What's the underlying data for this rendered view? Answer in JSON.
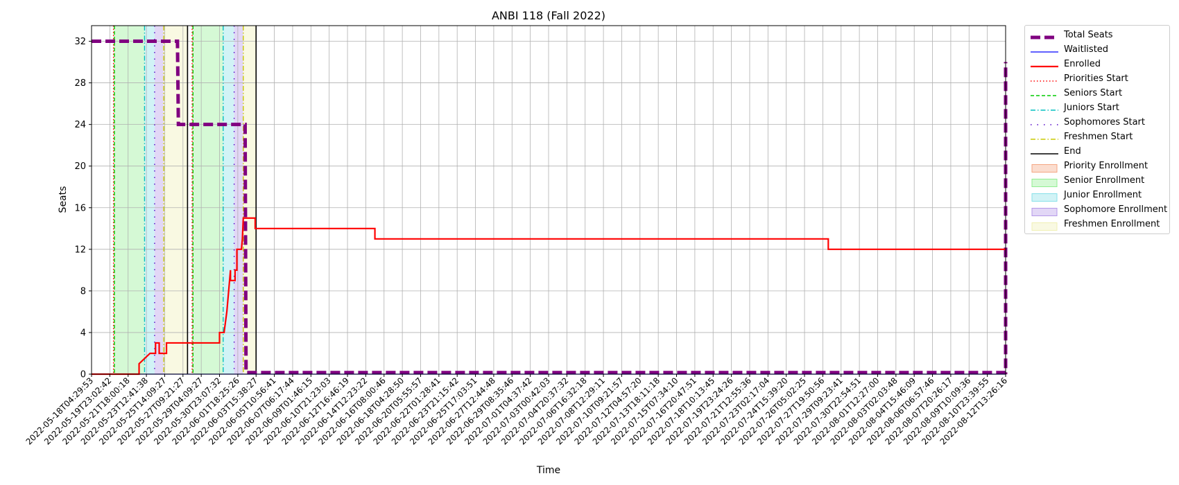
{
  "chart_data": {
    "type": "line",
    "title": "ANBI 118 (Fall 2022)",
    "xlabel": "Time",
    "ylabel": "Seats",
    "ylim": [
      0,
      33.5
    ],
    "yticks": [
      0,
      4,
      8,
      12,
      16,
      20,
      24,
      28,
      32
    ],
    "grid": true,
    "legend_position": "outside-right",
    "xticks": [
      "2022-05-18T04:29:53",
      "2022-05-19T23:02:42",
      "2022-05-21T18:00:18",
      "2022-05-23T12:41:38",
      "2022-05-25T14:09:27",
      "2022-05-27T09:21:27",
      "2022-05-29T04:09:27",
      "2022-05-30T23:07:32",
      "2022-06-01T18:25:26",
      "2022-06-03T15:38:27",
      "2022-06-05T10:56:41",
      "2022-06-07T06:17:44",
      "2022-06-09T01:46:15",
      "2022-06-10T21:23:03",
      "2022-06-12T16:46:19",
      "2022-06-14T12:23:22",
      "2022-06-16T08:00:46",
      "2022-06-18T04:28:50",
      "2022-06-20T05:55:57",
      "2022-06-22T01:28:41",
      "2022-06-23T21:15:42",
      "2022-06-25T17:03:51",
      "2022-06-27T12:44:48",
      "2022-06-29T08:35:46",
      "2022-07-01T04:37:42",
      "2022-07-03T00:42:03",
      "2022-07-04T20:37:32",
      "2022-07-06T16:32:18",
      "2022-07-08T12:29:11",
      "2022-07-10T09:21:57",
      "2022-07-12T04:57:20",
      "2022-07-13T18:11:18",
      "2022-07-15T07:34:10",
      "2022-07-16T20:47:51",
      "2022-07-18T10:13:45",
      "2022-07-19T23:24:26",
      "2022-07-21T12:55:36",
      "2022-07-23T02:17:04",
      "2022-07-24T15:39:20",
      "2022-07-26T05:02:25",
      "2022-07-27T19:50:56",
      "2022-07-29T09:23:41",
      "2022-07-30T22:54:51",
      "2022-08-01T12:27:00",
      "2022-08-03T02:03:48",
      "2022-08-04T15:46:09",
      "2022-08-06T06:57:46",
      "2022-08-07T20:26:17",
      "2022-08-09T10:09:36",
      "2022-08-10T23:39:55",
      "2022-08-12T13:26:16"
    ],
    "series": [
      {
        "name": "Total Seats",
        "color": "#800080",
        "style": "dashed-thick",
        "points": [
          [
            0,
            32
          ],
          [
            4.7,
            32
          ],
          [
            4.75,
            24
          ],
          [
            8.4,
            24
          ],
          [
            8.45,
            0.15
          ],
          [
            50,
            0.15
          ],
          [
            50,
            30
          ]
        ]
      },
      {
        "name": "Waitlisted",
        "color": "#0000ff",
        "style": "solid",
        "points": [
          [
            0,
            0
          ],
          [
            50,
            0
          ]
        ]
      },
      {
        "name": "Enrolled",
        "color": "#ff0000",
        "style": "solid-thick",
        "points": [
          [
            0,
            0
          ],
          [
            2.6,
            0
          ],
          [
            2.6,
            1
          ],
          [
            3.2,
            2
          ],
          [
            3.5,
            2
          ],
          [
            3.5,
            3
          ],
          [
            3.7,
            3
          ],
          [
            3.7,
            2
          ],
          [
            4.1,
            2
          ],
          [
            4.1,
            3
          ],
          [
            7.0,
            3
          ],
          [
            7.0,
            4
          ],
          [
            7.25,
            4
          ],
          [
            7.4,
            6
          ],
          [
            7.5,
            8
          ],
          [
            7.6,
            10
          ],
          [
            7.6,
            9
          ],
          [
            7.85,
            9
          ],
          [
            7.85,
            10
          ],
          [
            7.95,
            10
          ],
          [
            7.95,
            12
          ],
          [
            8.2,
            12
          ],
          [
            8.25,
            13
          ],
          [
            8.3,
            15
          ],
          [
            8.95,
            15
          ],
          [
            8.95,
            14
          ],
          [
            15.5,
            14
          ],
          [
            15.5,
            13
          ],
          [
            40.3,
            13
          ],
          [
            40.3,
            12
          ],
          [
            50,
            12
          ]
        ]
      }
    ],
    "vertical_markers": [
      {
        "name": "Priorities Start",
        "color": "#ff0000",
        "style": "dotted",
        "x": [
          1.2,
          5.5
        ]
      },
      {
        "name": "Seniors Start",
        "color": "#00cc00",
        "style": "dashed",
        "x": [
          1.25,
          5.55
        ]
      },
      {
        "name": "Juniors Start",
        "color": "#00bfbf",
        "style": "dashdot",
        "x": [
          2.9,
          7.2
        ]
      },
      {
        "name": "Sophomores Start",
        "color": "#5000c8",
        "style": "loosedot",
        "x": [
          3.45,
          7.8
        ]
      },
      {
        "name": "Freshmen Start",
        "color": "#c8c800",
        "style": "dashdot",
        "x": [
          3.95,
          8.3
        ]
      },
      {
        "name": "End",
        "color": "#000000",
        "style": "solid",
        "x": [
          5.25,
          9.0
        ]
      }
    ],
    "spans": [
      {
        "name": "Priority Enrollment",
        "color": "#f4a582",
        "ranges": [
          [
            1.2,
            1.25
          ],
          [
            5.5,
            5.55
          ]
        ]
      },
      {
        "name": "Senior Enrollment",
        "color": "#90ee90",
        "ranges": [
          [
            1.25,
            2.9
          ],
          [
            5.55,
            7.2
          ]
        ]
      },
      {
        "name": "Junior Enrollment",
        "color": "#87e0e8",
        "ranges": [
          [
            2.9,
            3.45
          ],
          [
            7.2,
            7.8
          ]
        ]
      },
      {
        "name": "Sophomore Enrollment",
        "color": "#b497e8",
        "ranges": [
          [
            3.45,
            3.95
          ],
          [
            7.8,
            8.3
          ]
        ]
      },
      {
        "name": "Freshmen Enrollment",
        "color": "#f0f0b4",
        "ranges": [
          [
            3.95,
            5.25
          ],
          [
            8.3,
            9.0
          ]
        ]
      }
    ]
  }
}
